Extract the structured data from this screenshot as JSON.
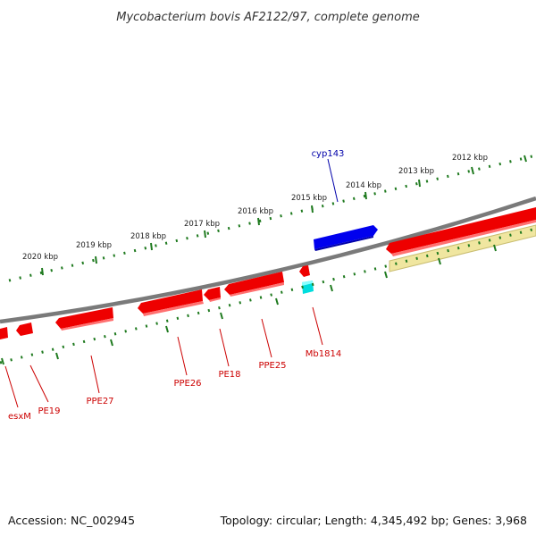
{
  "title": "Mycobacterium bovis AF2122/97, complete genome",
  "footer": {
    "accession": "Accession: NC_002945",
    "summary": "Topology: circular; Length: 4,345,492 bp; Genes: 3,968"
  },
  "colors": {
    "backbone": "#7a7a7a",
    "tick": "#1f7a1f",
    "gene_forward": "#0000ee",
    "gene_reverse": "#ee0000",
    "gene_reverse_alt": "#00dddd",
    "feature_track": "#f0e6a0",
    "label_forward": "#0000aa",
    "label_reverse": "#cc0000"
  },
  "kbp_labels": [
    "2012 kbp",
    "2013 kbp",
    "2014 kbp",
    "2015 kbp",
    "2016 kbp",
    "2017 kbp",
    "2018 kbp",
    "2019 kbp",
    "2020 kbp"
  ],
  "forward_genes": [
    {
      "name": "cyp143",
      "icon": "arrow-right"
    }
  ],
  "reverse_genes": [
    {
      "name": "esxM"
    },
    {
      "name": "PE19"
    },
    {
      "name": "PPE27"
    },
    {
      "name": "PPE26"
    },
    {
      "name": "PE18"
    },
    {
      "name": "PPE25"
    },
    {
      "name": "Mb1814"
    }
  ]
}
